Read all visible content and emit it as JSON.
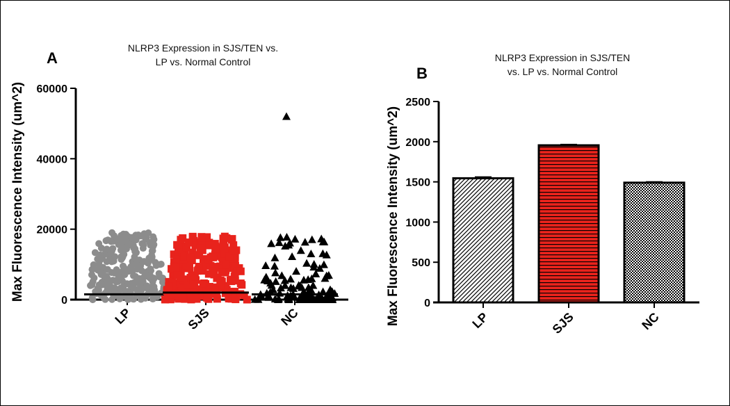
{
  "chart_data": [
    {
      "panel_label": "A",
      "type": "scatter",
      "title_lines": [
        "NLRP3 Expression in SJS/TEN vs.",
        "LP vs. Normal Control"
      ],
      "ylabel": "Max Fluorescence Intensity (um^2)",
      "ylim": [
        0,
        60000
      ],
      "yticks": [
        0,
        20000,
        40000,
        60000
      ],
      "categories": [
        "LP",
        "SJS",
        "NC"
      ],
      "colors": [
        "#8c8c8c",
        "#e8231c",
        "#000000"
      ],
      "markers": [
        "circle",
        "square",
        "triangle"
      ],
      "means": [
        1500,
        2000,
        1500
      ],
      "max_values": [
        19000,
        18000,
        52000
      ]
    },
    {
      "panel_label": "B",
      "type": "bar",
      "title_lines": [
        "NLRP3 Expression in SJS/TEN",
        "vs. LP vs. Normal Control"
      ],
      "ylabel": "Max Fluorescence Intensity (um^2)",
      "ylim": [
        0,
        2500
      ],
      "yticks": [
        0,
        500,
        1000,
        1500,
        2000,
        2500
      ],
      "categories": [
        "LP",
        "SJS",
        "NC"
      ],
      "values": [
        1545,
        1955,
        1490
      ],
      "errors": [
        15,
        10,
        10
      ],
      "fills": [
        "diagonal-hatch",
        "horizontal-stripes-red",
        "checker-hatch"
      ]
    }
  ]
}
